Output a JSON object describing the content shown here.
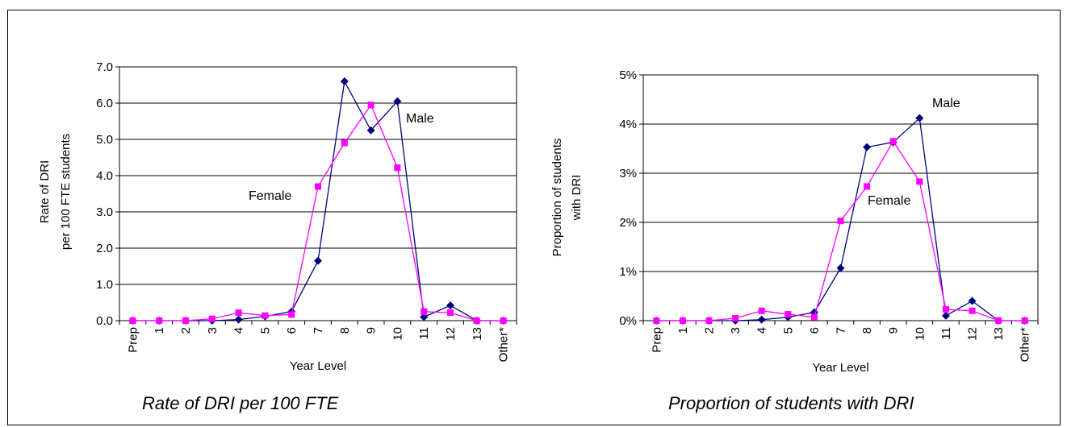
{
  "chart_data": [
    {
      "type": "line",
      "caption": "Rate of DRI per 100 FTE",
      "xlabel": "Year Level",
      "ylabel": [
        "Rate of DRI",
        "per 100 FTE students"
      ],
      "categories": [
        "Prep",
        "1",
        "2",
        "3",
        "4",
        "5",
        "6",
        "7",
        "8",
        "9",
        "10",
        "11",
        "12",
        "13",
        "Other*"
      ],
      "ylim": [
        0,
        7
      ],
      "yticks": [
        "0.0",
        "1.0",
        "2.0",
        "3.0",
        "4.0",
        "5.0",
        "6.0",
        "7.0"
      ],
      "grid": true,
      "series": [
        {
          "name": "Male",
          "color": "#000080",
          "marker": "diamond",
          "values": [
            0,
            0,
            0,
            0,
            0.03,
            0.12,
            0.25,
            1.65,
            6.6,
            5.25,
            6.05,
            0.1,
            0.42,
            0,
            0
          ]
        },
        {
          "name": "Female",
          "color": "#ff00ff",
          "marker": "square",
          "values": [
            0,
            0,
            0,
            0.05,
            0.22,
            0.14,
            0.17,
            3.7,
            4.9,
            5.95,
            4.22,
            0.25,
            0.22,
            0,
            0
          ]
        }
      ]
    },
    {
      "type": "line",
      "caption": "Proportion of students with DRI",
      "xlabel": "Year Level",
      "ylabel": [
        "Proportion of students",
        "with DRI"
      ],
      "categories": [
        "Prep",
        "1",
        "2",
        "3",
        "4",
        "5",
        "6",
        "7",
        "8",
        "9",
        "10",
        "11",
        "12",
        "13",
        "Other*"
      ],
      "ylim": [
        0,
        5
      ],
      "yticks": [
        "0%",
        "1%",
        "2%",
        "3%",
        "4%",
        "5%"
      ],
      "grid": true,
      "series": [
        {
          "name": "Male",
          "color": "#000080",
          "marker": "diamond",
          "values": [
            0,
            0,
            0,
            0,
            0.02,
            0.07,
            0.17,
            1.07,
            3.53,
            3.63,
            4.12,
            0.1,
            0.4,
            0,
            0
          ]
        },
        {
          "name": "Female",
          "color": "#ff00ff",
          "marker": "square",
          "values": [
            0,
            0,
            0,
            0.05,
            0.2,
            0.13,
            0.07,
            2.03,
            2.73,
            3.65,
            2.83,
            0.23,
            0.2,
            0,
            0
          ]
        }
      ]
    }
  ]
}
